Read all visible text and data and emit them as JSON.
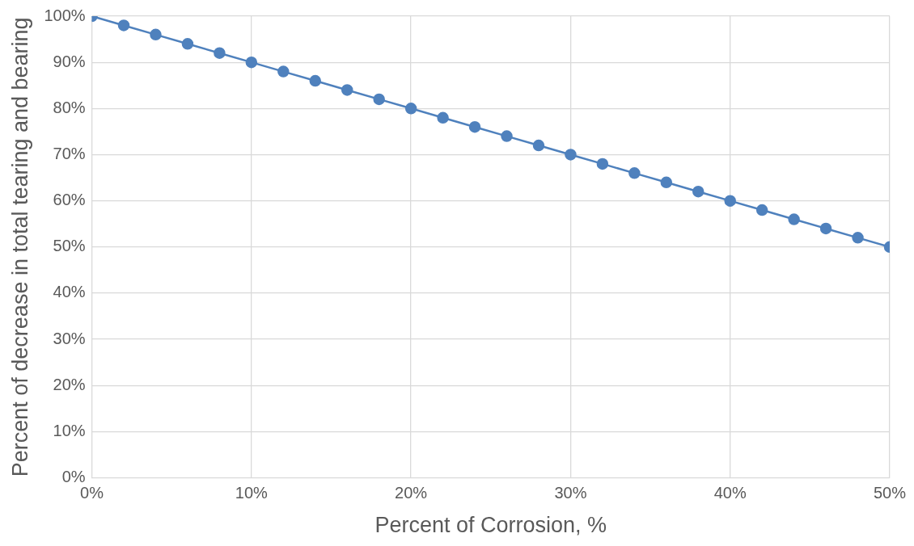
{
  "chart_data": {
    "type": "line",
    "xlabel": "Percent of Corrosion, %",
    "ylabel": "Percent of decrease in total tearing and bearing",
    "x": [
      0,
      2,
      4,
      6,
      8,
      10,
      12,
      14,
      16,
      18,
      20,
      22,
      24,
      26,
      28,
      30,
      32,
      34,
      36,
      38,
      40,
      42,
      44,
      46,
      48,
      50
    ],
    "series": [
      {
        "color": "#4f81bd",
        "values": [
          100,
          98,
          96,
          94,
          92,
          90,
          88,
          86,
          84,
          82,
          80,
          78,
          76,
          74,
          72,
          70,
          68,
          66,
          64,
          62,
          60,
          58,
          56,
          54,
          52,
          50
        ]
      }
    ],
    "xlim": [
      0,
      50
    ],
    "xticks": [
      {
        "value": 0,
        "label": "0%"
      },
      {
        "value": 10,
        "label": "10%"
      },
      {
        "value": 20,
        "label": "20%"
      },
      {
        "value": 30,
        "label": "30%"
      },
      {
        "value": 40,
        "label": "40%"
      },
      {
        "value": 50,
        "label": "50%"
      }
    ],
    "ylim": [
      0,
      100
    ],
    "yticks": [
      {
        "value": 0,
        "label": "0%"
      },
      {
        "value": 10,
        "label": "10%"
      },
      {
        "value": 20,
        "label": "20%"
      },
      {
        "value": 30,
        "label": "30%"
      },
      {
        "value": 40,
        "label": "40%"
      },
      {
        "value": 50,
        "label": "50%"
      },
      {
        "value": 60,
        "label": "60%"
      },
      {
        "value": 70,
        "label": "70%"
      },
      {
        "value": 80,
        "label": "80%"
      },
      {
        "value": 90,
        "label": "90%"
      },
      {
        "value": 100,
        "label": "100%"
      }
    ],
    "grid": true,
    "legend": false,
    "marker": "circle",
    "line_style": "solid"
  }
}
